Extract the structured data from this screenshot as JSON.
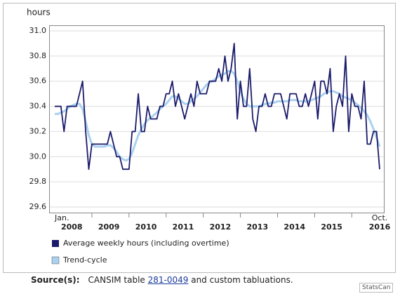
{
  "chart_data": {
    "type": "line",
    "y_label": "hours",
    "x_start_label": "Jan.",
    "x_end_label": "Oct.",
    "years": [
      2008,
      2009,
      2010,
      2011,
      2012,
      2013,
      2014,
      2015,
      2016
    ],
    "ylim": [
      29.6,
      31.0
    ],
    "yticks": [
      29.6,
      29.8,
      {
        "value": 30,
        "label": "30.0"
      },
      30.2,
      30.4,
      30.6,
      30.8,
      {
        "value": 31,
        "label": "31.0"
      }
    ],
    "grid": true,
    "series": [
      {
        "name": "Trend-cycle",
        "color": "#a9d1ef",
        "values": [
          30.34,
          30.34,
          30.35,
          30.36,
          30.38,
          30.4,
          30.41,
          30.42,
          30.42,
          30.38,
          30.28,
          30.17,
          30.1,
          30.08,
          30.08,
          30.08,
          30.08,
          30.09,
          30.09,
          30.07,
          30.04,
          30.0,
          29.98,
          29.97,
          29.98,
          30.03,
          30.1,
          30.17,
          30.22,
          30.26,
          30.29,
          30.31,
          30.33,
          30.35,
          30.38,
          30.4,
          30.42,
          30.45,
          30.48,
          30.48,
          30.46,
          30.44,
          30.42,
          30.42,
          30.44,
          30.46,
          30.48,
          30.51,
          30.54,
          30.57,
          30.59,
          30.6,
          30.62,
          30.64,
          30.65,
          30.66,
          30.68,
          30.68,
          30.66,
          30.6,
          30.52,
          30.46,
          30.42,
          30.4,
          30.4,
          30.4,
          30.4,
          30.41,
          30.42,
          30.42,
          30.43,
          30.43,
          30.44,
          30.44,
          30.44,
          30.44,
          30.45,
          30.45,
          30.45,
          30.44,
          30.44,
          30.44,
          30.44,
          30.45,
          30.46,
          30.47,
          30.48,
          30.5,
          30.51,
          30.52,
          30.52,
          30.51,
          30.5,
          30.48,
          30.47,
          30.46,
          30.45,
          30.43,
          30.41,
          30.39,
          30.36,
          30.33,
          30.28,
          30.22,
          30.15,
          30.08
        ]
      },
      {
        "name": "Average weekly hours (including overtime)",
        "color": "#1b1b6b",
        "values": [
          30.4,
          30.4,
          30.4,
          30.2,
          30.4,
          30.4,
          30.4,
          30.4,
          30.5,
          30.6,
          30.2,
          29.9,
          30.1,
          30.1,
          30.1,
          30.1,
          30.1,
          30.1,
          30.2,
          30.1,
          30.0,
          30.0,
          29.9,
          29.9,
          29.9,
          30.2,
          30.2,
          30.5,
          30.2,
          30.2,
          30.4,
          30.3,
          30.3,
          30.3,
          30.4,
          30.4,
          30.5,
          30.5,
          30.6,
          30.4,
          30.5,
          30.4,
          30.3,
          30.4,
          30.5,
          30.4,
          30.6,
          30.5,
          30.5,
          30.5,
          30.6,
          30.6,
          30.6,
          30.7,
          30.6,
          30.8,
          30.6,
          30.7,
          30.9,
          30.3,
          30.6,
          30.4,
          30.4,
          30.7,
          30.3,
          30.2,
          30.4,
          30.4,
          30.5,
          30.4,
          30.4,
          30.5,
          30.5,
          30.5,
          30.4,
          30.3,
          30.5,
          30.5,
          30.5,
          30.4,
          30.4,
          30.5,
          30.4,
          30.5,
          30.6,
          30.3,
          30.6,
          30.6,
          30.5,
          30.7,
          30.2,
          30.4,
          30.5,
          30.4,
          30.8,
          30.2,
          30.5,
          30.4,
          30.4,
          30.3,
          30.6,
          30.1,
          30.1,
          30.2,
          30.2,
          29.9
        ]
      }
    ]
  },
  "source": {
    "label": "Source(s):",
    "text_before": "CANSIM table ",
    "link": "281-0049",
    "text_after": " and custom tabluations."
  },
  "brand": "StatsCan"
}
